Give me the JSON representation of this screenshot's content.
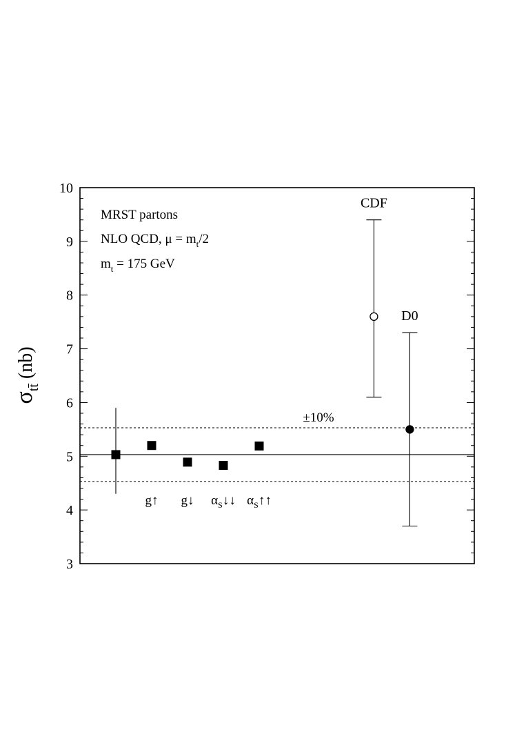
{
  "chart_data": {
    "type": "scatter",
    "title": "",
    "xlabel": "",
    "ylabel": {
      "symbol": "σ",
      "subscript": "tt̄",
      "unit": "(nb)"
    },
    "ylim": [
      3,
      10
    ],
    "yticks": [
      3,
      4,
      5,
      6,
      7,
      8,
      9,
      10
    ],
    "yticklabels": [
      "3",
      "4",
      "5",
      "6",
      "7",
      "8",
      "9",
      "10"
    ],
    "grid": false,
    "info_text": {
      "line1": "MRST partons",
      "line2": {
        "pre": "NLO QCD, μ = m",
        "sub": "t",
        "post": "/2"
      },
      "line3": {
        "pre": "m",
        "sub": "t",
        "post": " = 175 GeV"
      }
    },
    "reference_lines": [
      {
        "kind": "central",
        "y": 5.03,
        "style": "solid"
      },
      {
        "kind": "upper",
        "y": 5.53,
        "style": "dashed"
      },
      {
        "kind": "lower",
        "y": 4.53,
        "style": "dashed"
      }
    ],
    "band_label": "±10%",
    "theory_points": [
      {
        "x": 1,
        "y": 5.03,
        "err_low": 4.3,
        "err_high": 5.9,
        "label": null
      },
      {
        "x": 2,
        "y": 5.2,
        "label": {
          "main": "g",
          "sub": "",
          "arrows": "↑"
        }
      },
      {
        "x": 3,
        "y": 4.89,
        "label": {
          "main": "g",
          "sub": "",
          "arrows": "↓"
        }
      },
      {
        "x": 4,
        "y": 4.83,
        "label": {
          "main": "α",
          "sub": "S",
          "arrows": "↓↓"
        }
      },
      {
        "x": 5,
        "y": 5.19,
        "label": {
          "main": "α",
          "sub": "S",
          "arrows": "↑↑"
        }
      }
    ],
    "experiments": [
      {
        "name": "CDF",
        "x": 8.2,
        "y": 7.6,
        "err_low": 6.1,
        "err_high": 9.4,
        "marker": "open-circle"
      },
      {
        "name": "D0",
        "x": 9.2,
        "y": 5.5,
        "err_low": 3.7,
        "err_high": 7.3,
        "marker": "filled-circle"
      }
    ],
    "xlim": [
      0,
      11
    ]
  }
}
